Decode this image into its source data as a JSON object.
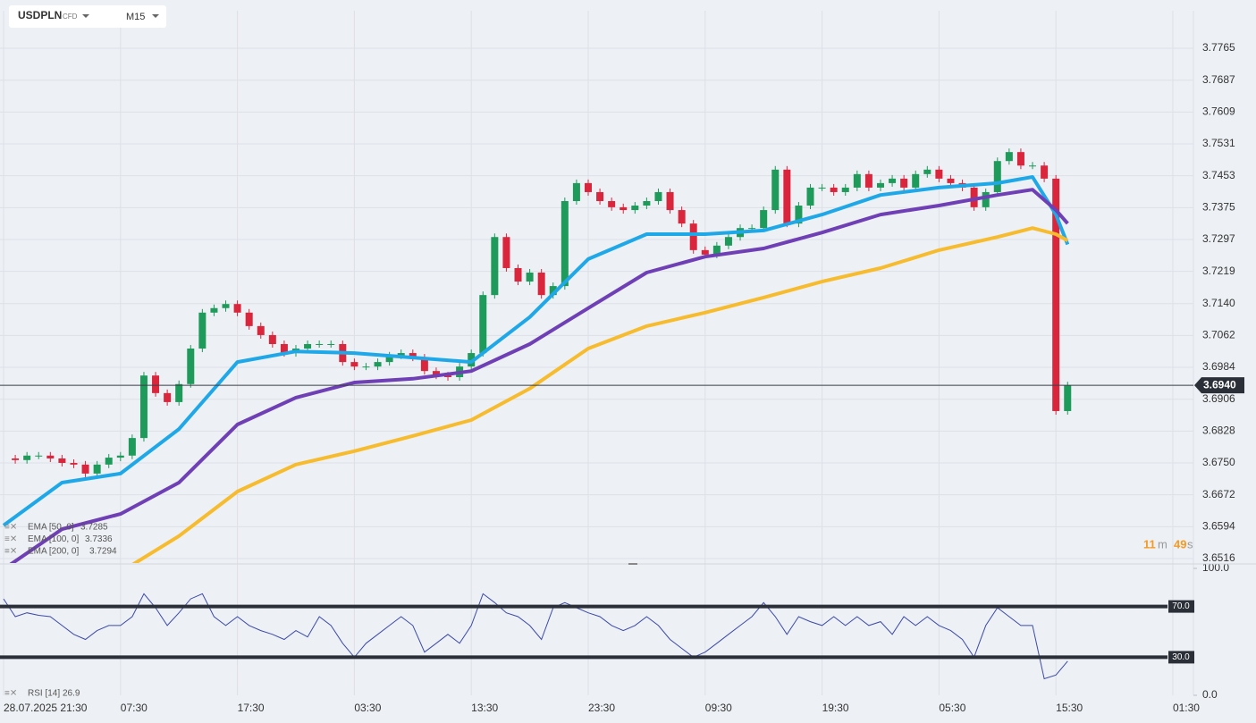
{
  "header": {
    "symbol": "USDPLN",
    "instrument": "CFD",
    "timeframe": "M15"
  },
  "chart_data": {
    "type": "candlestick",
    "xlim": [
      -0.306,
      101.76
    ],
    "xticks": [
      {
        "value": 0,
        "label": "28.07.2025 21:30"
      },
      {
        "value": 10,
        "label": "07:30"
      },
      {
        "value": 20,
        "label": "17:30"
      },
      {
        "value": 30,
        "label": "03:30"
      },
      {
        "value": 40,
        "label": "13:30"
      },
      {
        "value": 50,
        "label": "23:30"
      },
      {
        "value": 60,
        "label": "09:30"
      },
      {
        "value": 70,
        "label": "19:30"
      },
      {
        "value": 80,
        "label": "05:30"
      },
      {
        "value": 90,
        "label": "15:30"
      },
      {
        "value": 100,
        "label": "01:30"
      }
    ],
    "ylim": [
      3.6505,
      3.7857
    ],
    "yticks": [
      3.7765,
      3.7687,
      3.7609,
      3.7531,
      3.7453,
      3.7375,
      3.7297,
      3.7219,
      {
        "value": 3.714,
        "label": "3.7140"
      },
      3.7062,
      3.6984,
      3.6906,
      3.6828,
      {
        "value": 3.675,
        "label": "3.6750"
      },
      3.6672,
      3.6594,
      3.6516
    ],
    "grid": true,
    "price": {
      "x": [
        0,
        1,
        2,
        3,
        4,
        5,
        6,
        7,
        8,
        9,
        10,
        11,
        12,
        13,
        14,
        15,
        16,
        17,
        18,
        19,
        20,
        21,
        22,
        23,
        24,
        25,
        26,
        27,
        28,
        29,
        30,
        31,
        32,
        33,
        34,
        35,
        36,
        37,
        38,
        39,
        40,
        41,
        42,
        43,
        44,
        45,
        46,
        47,
        48,
        49,
        50,
        51,
        52,
        53,
        54,
        55,
        56,
        57,
        58,
        59,
        60,
        61,
        62,
        63,
        64,
        65,
        66,
        67,
        68,
        69,
        70,
        71,
        72,
        73,
        74,
        75,
        76,
        77,
        78,
        79,
        80,
        81,
        82,
        83,
        84,
        85,
        86,
        87,
        88,
        89,
        90,
        91
      ],
      "values": [
        3.6761,
        3.6757,
        3.6768,
        3.6768,
        3.6761,
        3.675,
        3.6746,
        3.6724,
        3.6746,
        3.6763,
        3.6768,
        3.6811,
        3.6964,
        3.6921,
        3.6899,
        3.6943,
        3.703,
        3.7118,
        3.7129,
        3.7139,
        3.7118,
        3.7085,
        3.7063,
        3.7041,
        3.7019,
        3.703,
        3.7041,
        3.7041,
        3.7041,
        3.6997,
        3.6986,
        3.6986,
        3.6997,
        3.7013,
        3.7019,
        3.7008,
        3.6975,
        3.6964,
        3.696,
        3.6986,
        3.7019,
        3.7161,
        3.7303,
        3.7227,
        3.7194,
        3.7216,
        3.7161,
        3.7183,
        3.7391,
        3.7435,
        3.7413,
        3.7391,
        3.7376,
        3.7369,
        3.738,
        3.7391,
        3.7413,
        3.7369,
        3.7336,
        3.7271,
        3.726,
        3.7282,
        3.7303,
        3.7325,
        3.7325,
        3.7369,
        3.7468,
        3.7336,
        3.738,
        3.7424,
        3.7424,
        3.7413,
        3.7424,
        3.7457,
        3.7424,
        3.7435,
        3.7446,
        3.7424,
        3.7457,
        3.7468,
        3.7446,
        3.7435,
        3.7424,
        3.7376,
        3.7413,
        3.7489,
        3.7511,
        3.7478,
        3.7478,
        3.7446,
        3.6877,
        3.694
      ],
      "up_color": "#1e9a5a",
      "down_color": "#d9263d"
    },
    "last_price": {
      "value": 3.694,
      "label": "3.6940"
    },
    "ema_x": [
      0,
      5,
      10,
      15,
      20,
      25,
      30,
      35,
      40,
      45,
      50,
      55,
      60,
      65,
      70,
      75,
      80,
      85,
      88,
      90,
      91
    ],
    "series": [
      {
        "name": "EMA [50, 0]",
        "color": "#1fa8e8",
        "values": [
          3.6597,
          3.6702,
          3.6724,
          3.6833,
          3.6997,
          3.7023,
          3.7019,
          3.7008,
          3.6997,
          3.7107,
          3.7249,
          3.731,
          3.731,
          3.7319,
          3.7358,
          3.7406,
          3.7424,
          3.7435,
          3.745,
          3.7358,
          3.7285
        ]
      },
      {
        "name": "EMA [100, 0]",
        "color": "#6f3fb5",
        "values": [
          3.649,
          3.6588,
          3.6625,
          3.6702,
          3.6844,
          3.691,
          3.6947,
          3.6956,
          3.6975,
          3.7041,
          3.7129,
          3.7216,
          3.7255,
          3.7275,
          3.7314,
          3.7358,
          3.738,
          3.7406,
          3.7419,
          3.7369,
          3.7336
        ]
      },
      {
        "name": "EMA [200, 0]",
        "color": "#f7bb2e",
        "values": [
          null,
          null,
          3.6483,
          3.6571,
          3.668,
          3.6746,
          3.6779,
          3.6816,
          3.6855,
          3.6932,
          3.703,
          3.7085,
          3.7118,
          3.7155,
          3.7194,
          3.7227,
          3.7271,
          3.7303,
          3.7325,
          3.731,
          3.7294
        ]
      }
    ],
    "countdown": {
      "minutes": 11,
      "minutes_unit": "m",
      "seconds": 49,
      "seconds_unit": "s"
    }
  },
  "rsi": {
    "name": "RSI [14]",
    "color": "#3c4aa8",
    "ylim": [
      0,
      100
    ],
    "yticks": [
      {
        "value": 100,
        "label": "100.0"
      },
      {
        "value": 0,
        "label": "0.0"
      }
    ],
    "levels": [
      {
        "value": 70,
        "label": "70.0"
      },
      {
        "value": 30,
        "label": "30.0"
      }
    ],
    "values": [
      76,
      62,
      65,
      63,
      62,
      55,
      48,
      44,
      51,
      55,
      55,
      62,
      80,
      69,
      55,
      65,
      76,
      80,
      62,
      55,
      62,
      55,
      51,
      48,
      44,
      51,
      46,
      62,
      55,
      41,
      30,
      41,
      48,
      55,
      62,
      55,
      34,
      41,
      48,
      41,
      55,
      80,
      73,
      65,
      62,
      55,
      44,
      69,
      73,
      69,
      65,
      62,
      55,
      51,
      55,
      62,
      55,
      44,
      37,
      30,
      34,
      41,
      48,
      55,
      62,
      73,
      62,
      48,
      62,
      58,
      55,
      62,
      55,
      62,
      55,
      58,
      48,
      62,
      55,
      62,
      55,
      51,
      44,
      30,
      55,
      69,
      62,
      55,
      55,
      13,
      16,
      26.9
    ]
  }
}
